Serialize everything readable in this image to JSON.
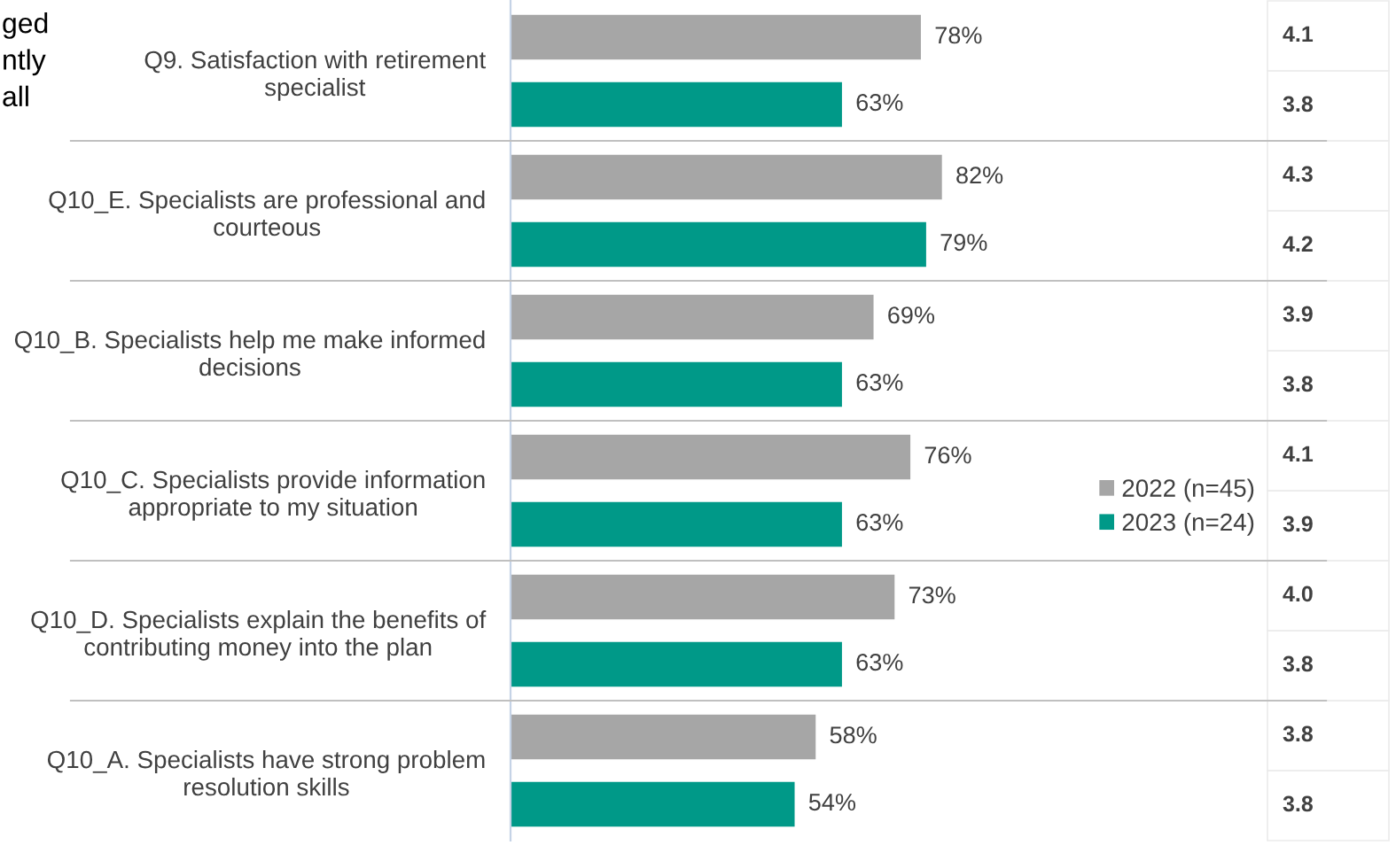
{
  "chart_data": {
    "type": "bar",
    "orientation": "horizontal",
    "categories": [
      "Q9. Satisfaction with retirement\nspecialist",
      "Q10_E. Specialists are professional and\ncourteous",
      "Q10_B. Specialists help me make informed\ndecisions",
      "Q10_C. Specialists provide information\nappropriate to my situation",
      "Q10_D. Specialists explain the benefits of\ncontributing money into the plan",
      "Q10_A. Specialists have strong problem\nresolution skills"
    ],
    "series": [
      {
        "name": "2022 (n=45)",
        "color": "#a6a6a6",
        "values": [
          78,
          82,
          69,
          76,
          73,
          58
        ],
        "value_labels": [
          "78%",
          "82%",
          "69%",
          "76%",
          "73%",
          "58%"
        ]
      },
      {
        "name": "2023 (n=24)",
        "color": "#009988",
        "values": [
          63,
          79,
          63,
          63,
          63,
          54
        ],
        "value_labels": [
          "63%",
          "79%",
          "63%",
          "63%",
          "63%",
          "54%"
        ]
      }
    ],
    "xlim": [
      0,
      155
    ],
    "tick_labels": "y",
    "grid": "y",
    "legend": "right",
    "annotations": [
      "ged\nntly\nall",
      "4.1",
      "3.8",
      "4.3",
      "4.2",
      "3.9",
      "3.8",
      "4.1",
      "3.9",
      "4.0",
      "3.8",
      "3.8",
      "3.8"
    ]
  }
}
